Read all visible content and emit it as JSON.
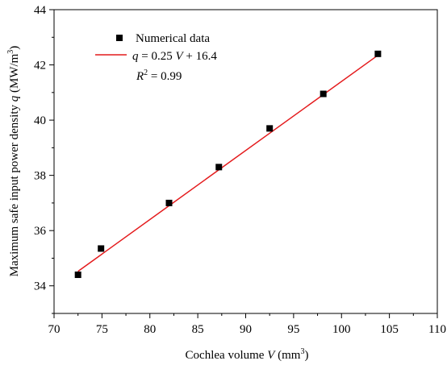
{
  "chart_data": {
    "type": "scatter",
    "xlabel": {
      "prefix": "Cochlea volume ",
      "var": "V",
      "unit_open": " (mm",
      "unit_sup": "3",
      "unit_close": ")"
    },
    "ylabel": {
      "prefix": "Maximum safe input power density  ",
      "var": "q",
      "unit_open": "  (MW/m",
      "unit_sup": "3",
      "unit_close": ")"
    },
    "xlim": [
      70,
      110
    ],
    "ylim": [
      33,
      44
    ],
    "x_ticks": [
      70,
      75,
      80,
      85,
      90,
      95,
      100,
      105,
      110
    ],
    "y_ticks": [
      34,
      36,
      38,
      40,
      42,
      44
    ],
    "grid": false,
    "legend_placement": "top-left",
    "series": [
      {
        "name": "Numerical data",
        "kind": "points",
        "marker": "square",
        "color": "#000000",
        "x": [
          72.5,
          74.9,
          82.0,
          87.2,
          92.5,
          98.1,
          103.8
        ],
        "y": [
          34.4,
          35.35,
          37.0,
          38.3,
          39.7,
          40.95,
          42.4
        ]
      },
      {
        "name_parts": {
          "var": "q",
          "eq": " = 0.25 ",
          "var2": "V",
          "rest": " + 16.4"
        },
        "kind": "fit-line",
        "color": "#e41a1c",
        "slope": 0.25,
        "intercept": 16.4,
        "x_range": [
          72.5,
          103.8
        ]
      }
    ],
    "annotations": [
      {
        "id": "r2",
        "var": "R",
        "sup": "2",
        "rest": " = 0.99"
      }
    ]
  }
}
